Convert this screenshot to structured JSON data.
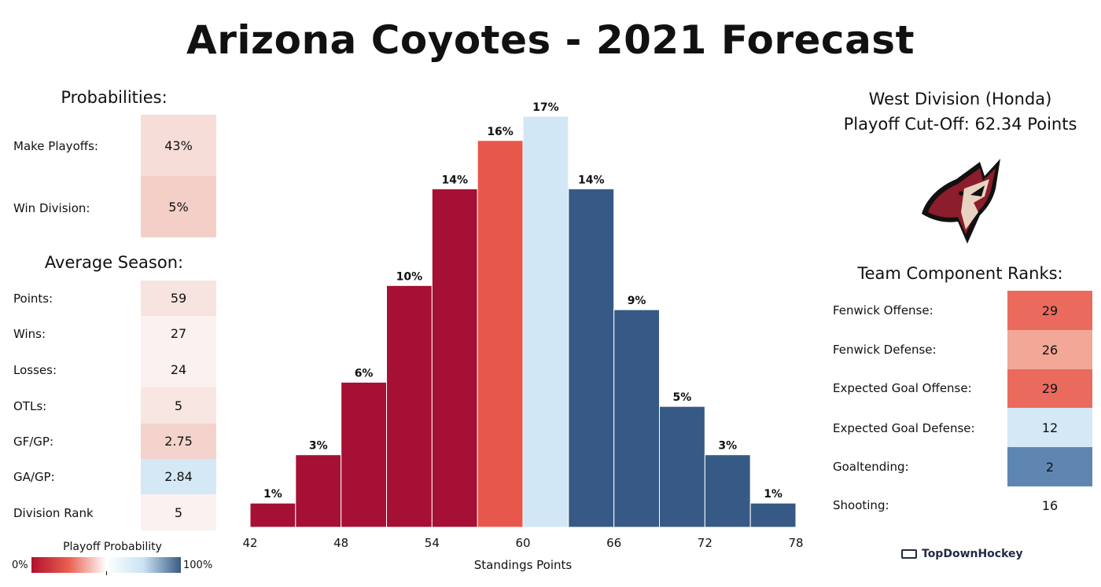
{
  "title": "Arizona Coyotes - 2021 Forecast",
  "probabilities": {
    "heading": "Probabilities:",
    "rows": [
      {
        "label": "Make Playoffs:",
        "value": "43%",
        "color": "#f6ddd8"
      },
      {
        "label": "Win Division:",
        "value": "5%",
        "color": "#f3cfc8"
      }
    ]
  },
  "average_season": {
    "heading": "Average Season:",
    "rows": [
      {
        "label": "Points:",
        "value": "59",
        "color": "#f7e4e0"
      },
      {
        "label": "Wins:",
        "value": "27",
        "color": "#fbf1ef"
      },
      {
        "label": "Losses:",
        "value": "24",
        "color": "#fbf1ef"
      },
      {
        "label": "OTLs:",
        "value": "5",
        "color": "#f8e6e2"
      },
      {
        "label": "GF/GP:",
        "value": "2.75",
        "color": "#f3d3cc"
      },
      {
        "label": "GA/GP:",
        "value": "2.84",
        "color": "#d4e8f5"
      },
      {
        "label": "Division Rank",
        "value": "5",
        "color": "#fbf1ef"
      }
    ]
  },
  "legend": {
    "title": "Playoff Probability",
    "min_label": "0%",
    "max_label": "100%",
    "colors": [
      "#b2102e",
      "#e9604f",
      "#ffffff",
      "#c9e3f3",
      "#3a5a86"
    ]
  },
  "division": {
    "name": "West Division (Honda)",
    "cutoff": "Playoff Cut-Off: 62.34 Points"
  },
  "logo_icon": "coyote-head-logo",
  "team_ranks": {
    "heading": "Team Component Ranks:",
    "rows": [
      {
        "label": "Fenwick Offense:",
        "value": "29",
        "color": "#ea6a5e"
      },
      {
        "label": "Fenwick Defense:",
        "value": "26",
        "color": "#f2a797"
      },
      {
        "label": "Expected Goal Offense:",
        "value": "29",
        "color": "#ea6a5e"
      },
      {
        "label": "Expected Goal Defense:",
        "value": "12",
        "color": "#d4e8f5"
      },
      {
        "label": "Goaltending:",
        "value": "2",
        "color": "#5f86b0"
      },
      {
        "label": "Shooting:",
        "value": "16",
        "color": "#ffffff"
      }
    ]
  },
  "brand": "TopDownHockey",
  "chart_data": {
    "type": "bar",
    "xlabel": "Standings Points",
    "ylabel": "",
    "x_ticks": [
      42,
      48,
      54,
      60,
      66,
      72,
      78
    ],
    "xlim": [
      42,
      78
    ],
    "bins": [
      {
        "start": 42,
        "end": 45,
        "value": 1,
        "label": "1%",
        "color": "#a51034"
      },
      {
        "start": 45,
        "end": 48,
        "value": 3,
        "label": "3%",
        "color": "#a51034"
      },
      {
        "start": 48,
        "end": 51,
        "value": 6,
        "label": "6%",
        "color": "#a51034"
      },
      {
        "start": 51,
        "end": 54,
        "value": 10,
        "label": "10%",
        "color": "#a51034"
      },
      {
        "start": 54,
        "end": 57,
        "value": 14,
        "label": "14%",
        "color": "#a51034"
      },
      {
        "start": 57,
        "end": 60,
        "value": 16,
        "label": "16%",
        "color": "#e8574c"
      },
      {
        "start": 60,
        "end": 63,
        "value": 17,
        "label": "17%",
        "color": "#d2e7f5"
      },
      {
        "start": 63,
        "end": 66,
        "value": 14,
        "label": "14%",
        "color": "#365a85"
      },
      {
        "start": 66,
        "end": 69,
        "value": 9,
        "label": "9%",
        "color": "#365a85"
      },
      {
        "start": 69,
        "end": 72,
        "value": 5,
        "label": "5%",
        "color": "#365a85"
      },
      {
        "start": 72,
        "end": 75,
        "value": 3,
        "label": "3%",
        "color": "#365a85"
      },
      {
        "start": 75,
        "end": 78,
        "value": 1,
        "label": "1%",
        "color": "#365a85"
      }
    ]
  }
}
